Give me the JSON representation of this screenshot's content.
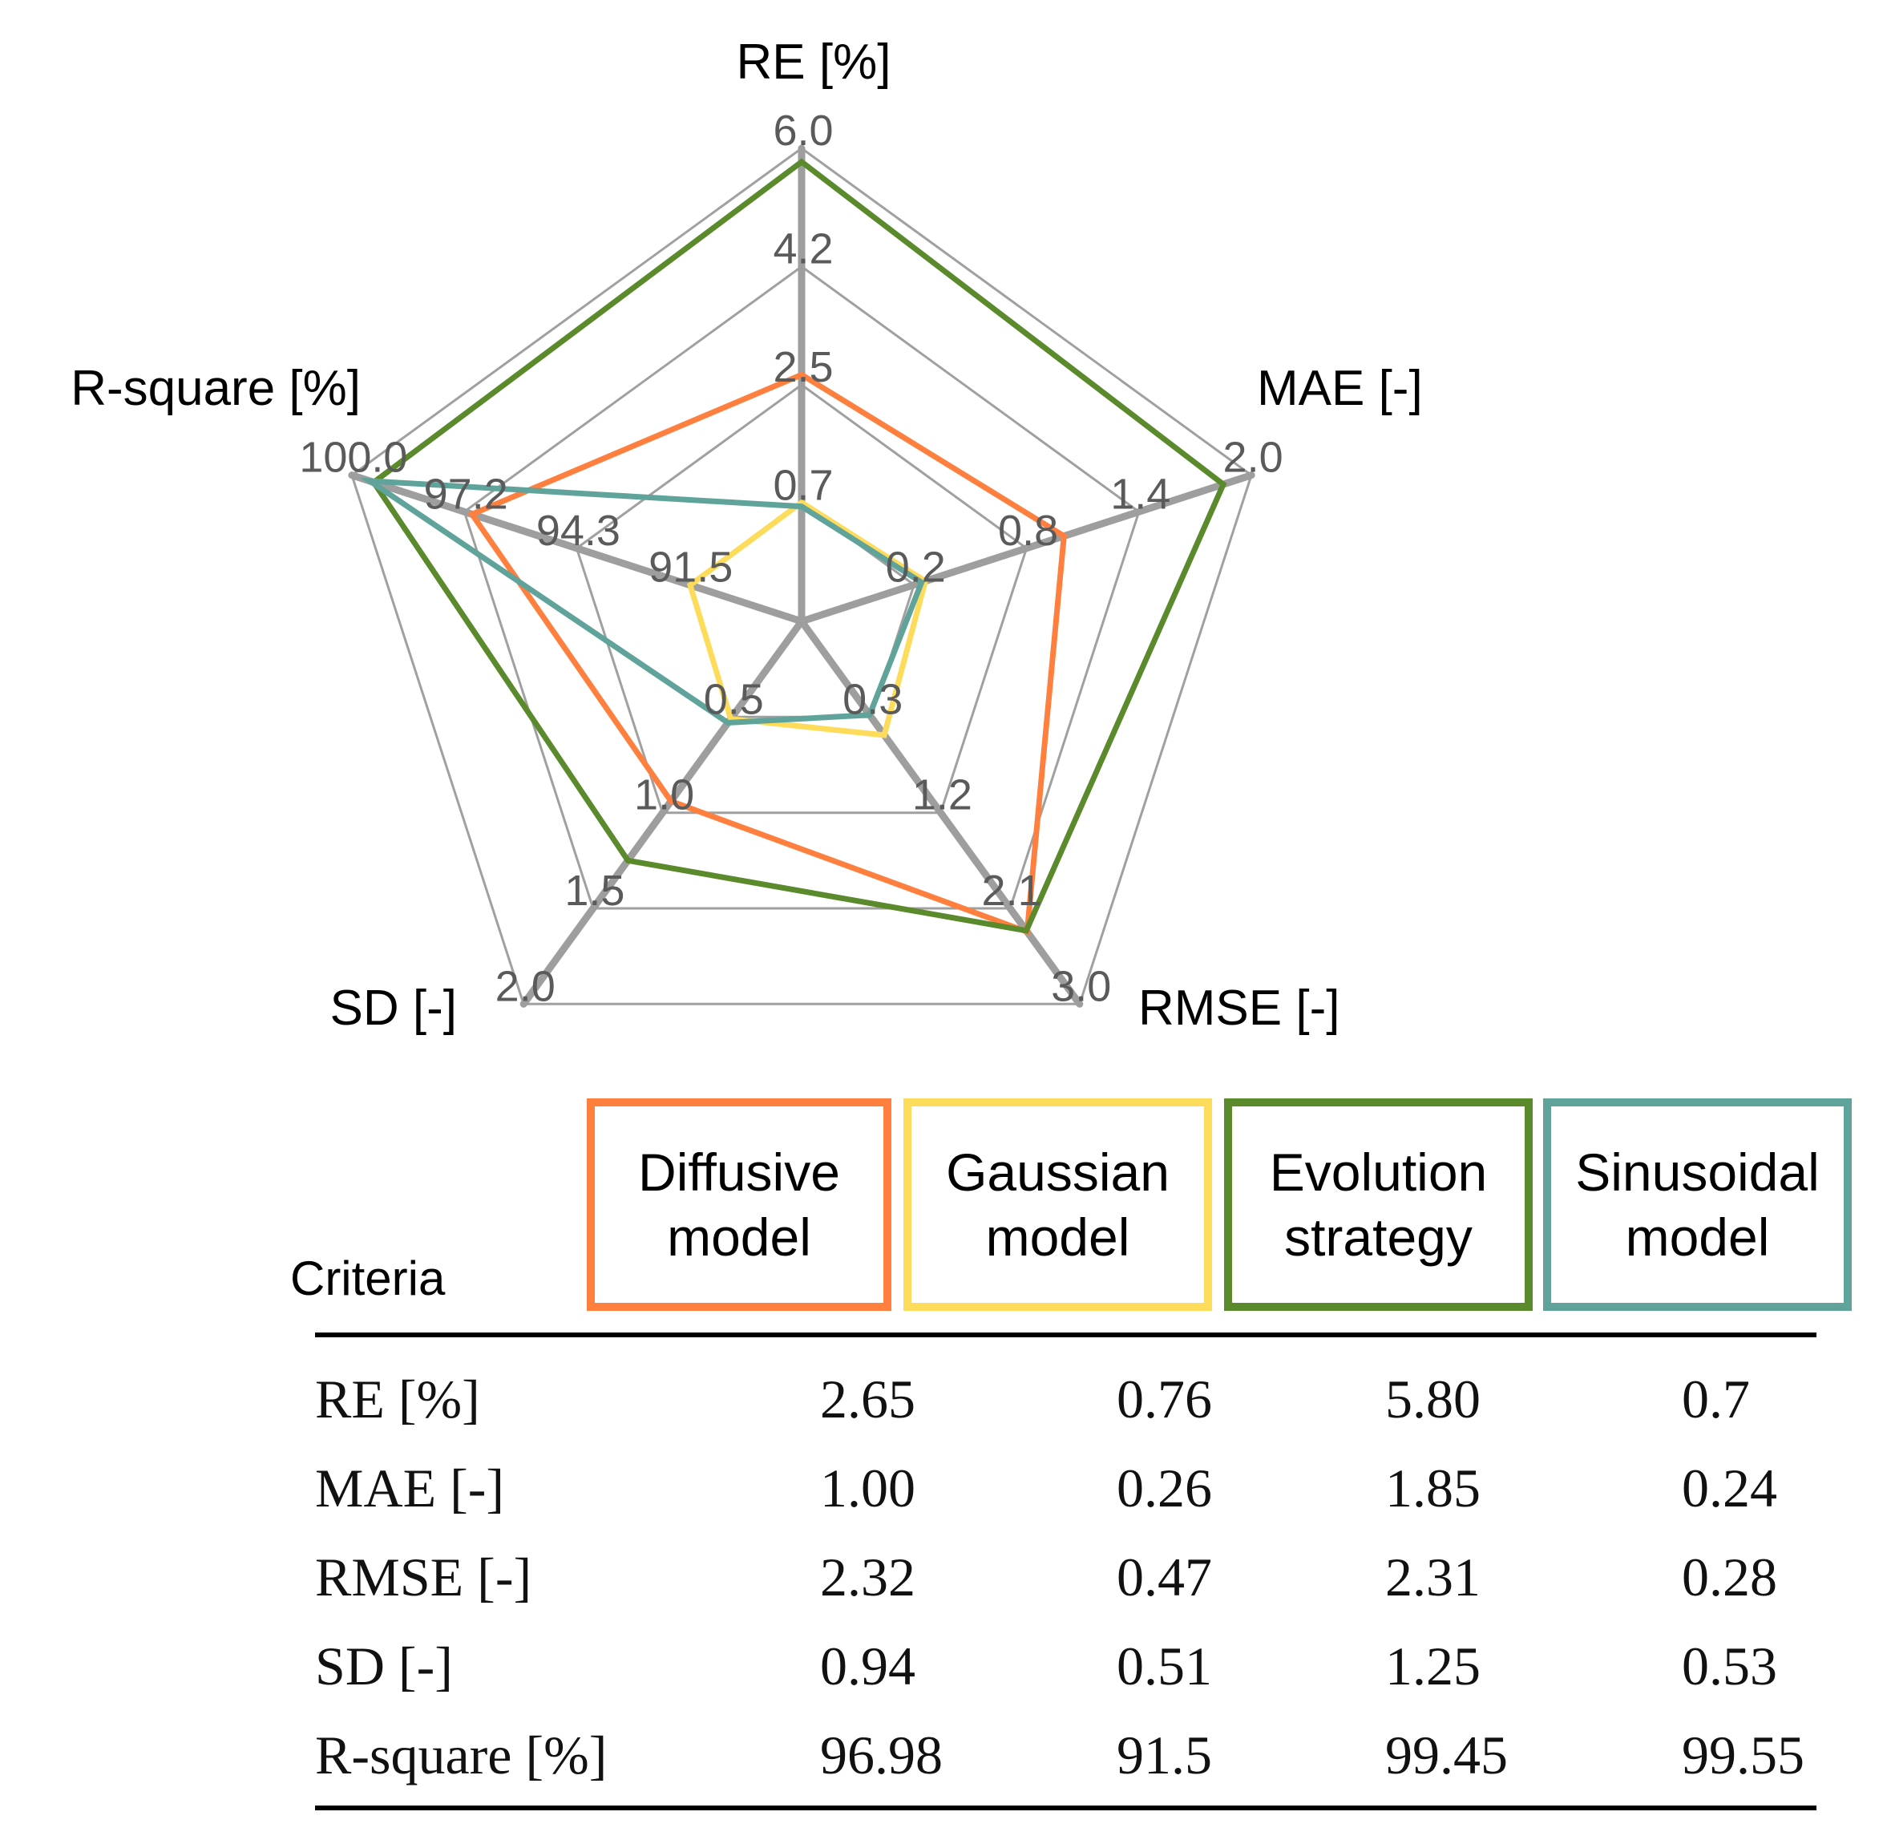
{
  "chart_data": {
    "type": "radar",
    "axes": [
      {
        "name": "RE [%]",
        "ticks": [
          "0.7",
          "2.5",
          "4.2",
          "6.0"
        ],
        "range": [
          -1.0,
          6.0
        ]
      },
      {
        "name": "MAE [-]",
        "ticks": [
          "0.2",
          "0.8",
          "1.4",
          "2.0"
        ],
        "range": [
          -0.4,
          2.0
        ]
      },
      {
        "name": "RMSE [-]",
        "ticks": [
          "0.3",
          "1.2",
          "2.1",
          "3.0"
        ],
        "range": [
          -0.6,
          3.0
        ]
      },
      {
        "name": "SD [-]",
        "ticks": [
          "0.5",
          "1.0",
          "1.5",
          "2.0"
        ],
        "range": [
          0.0,
          2.0
        ]
      },
      {
        "name": "R-square [%]",
        "ticks": [
          "91.5",
          "94.3",
          "97.2",
          "100.0"
        ],
        "range": [
          88.7,
          100.0
        ]
      }
    ],
    "series": [
      {
        "name": "Diffusive model",
        "color": "#FF7F3F",
        "values": [
          2.65,
          1.0,
          2.32,
          0.94,
          96.98
        ]
      },
      {
        "name": "Gaussian model",
        "color": "#FDDC5C",
        "values": [
          0.76,
          0.26,
          0.47,
          0.51,
          91.5
        ]
      },
      {
        "name": "Evolution strategy",
        "color": "#5B8A2D",
        "values": [
          5.8,
          1.85,
          2.31,
          1.25,
          99.45
        ]
      },
      {
        "name": "Sinusoidal model",
        "color": "#5FA39A",
        "values": [
          0.7,
          0.24,
          0.28,
          0.53,
          99.55
        ]
      }
    ],
    "grid_color": "#A0A0A0",
    "axis_color": "#9E9E9E"
  },
  "legend": {
    "items": [
      {
        "line1": "Diffusive",
        "line2": "model",
        "color": "#FF7F3F"
      },
      {
        "line1": "Gaussian",
        "line2": "model",
        "color": "#FDDC5C"
      },
      {
        "line1": "Evolution",
        "line2": "strategy",
        "color": "#5B8A2D"
      },
      {
        "line1": "Sinusoidal",
        "line2": "model",
        "color": "#5FA39A"
      }
    ]
  },
  "table": {
    "criteria_label": "Criteria",
    "rows": [
      {
        "label": "RE [%]",
        "values": [
          "2.65",
          "0.76",
          "5.80",
          "0.7"
        ]
      },
      {
        "label": "MAE [-]",
        "values": [
          "1.00",
          "0.26",
          "1.85",
          "0.24"
        ]
      },
      {
        "label": "RMSE [-]",
        "values": [
          "2.32",
          "0.47",
          "2.31",
          "0.28"
        ]
      },
      {
        "label": "SD [-]",
        "values": [
          "0.94",
          "0.51",
          "1.25",
          "0.53"
        ]
      },
      {
        "label": "R-square [%]",
        "values": [
          "96.98",
          "91.5",
          "99.45",
          "99.55"
        ]
      }
    ]
  }
}
